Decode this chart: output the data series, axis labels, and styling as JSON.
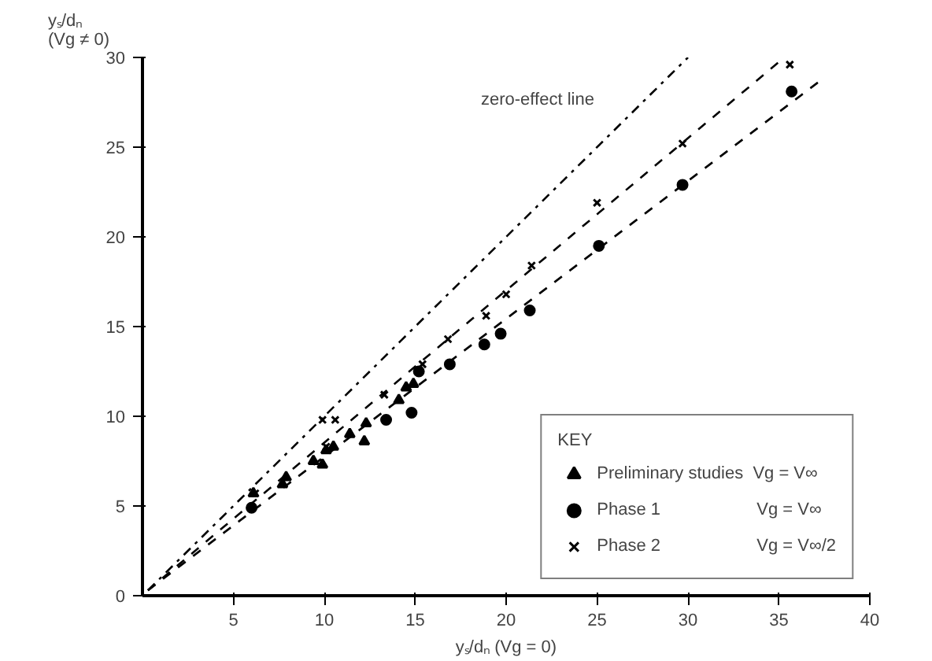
{
  "chart_data": {
    "type": "scatter",
    "xlabel": "yₛ/dₙ (Vg = 0)",
    "ylabel": "yₛ/dₙ\n(Vg ≠ 0)",
    "legend_title": "KEY",
    "xlim": [
      0,
      40
    ],
    "xticks": [
      5,
      10,
      15,
      20,
      25,
      30,
      35,
      40
    ],
    "ylim": [
      0,
      30
    ],
    "yticks": [
      0,
      5,
      10,
      15,
      20,
      25,
      30
    ],
    "grid": false,
    "legend": "bottom right",
    "annotations": [
      "zero-effect line"
    ],
    "series": [
      {
        "name": "Preliminary studies  Vg = V∞",
        "color": "#000000",
        "marker": "triangle",
        "x": [
          14.9,
          14.5,
          14.1,
          12.3,
          12.2,
          11.4,
          10.5,
          10.1,
          9.9,
          9.4,
          7.9,
          7.7,
          6.1
        ],
        "values": [
          11.8,
          11.6,
          10.9,
          9.6,
          8.6,
          9.0,
          8.3,
          8.1,
          7.3,
          7.5,
          6.6,
          6.2,
          5.7
        ]
      },
      {
        "name": "Phase 1                    Vg = V∞",
        "color": "#000000",
        "marker": "circle",
        "x": [
          35.7,
          29.7,
          25.1,
          21.3,
          19.7,
          18.8,
          16.9,
          15.2,
          14.8,
          13.4,
          6.0
        ],
        "values": [
          28.1,
          22.9,
          19.5,
          15.9,
          14.6,
          14.0,
          12.9,
          12.5,
          10.2,
          9.8,
          4.9
        ]
      },
      {
        "name": "Phase 2                    Vg = V∞/2",
        "color": "#000000",
        "marker": "x",
        "x": [
          35.6,
          29.7,
          25.0,
          21.4,
          20.0,
          18.9,
          16.8,
          15.4,
          13.3,
          10.6,
          9.9,
          10.1,
          6.2
        ],
        "values": [
          29.6,
          25.2,
          21.9,
          18.4,
          16.8,
          15.6,
          14.3,
          12.9,
          11.2,
          9.8,
          9.8,
          8.3,
          5.7
        ]
      },
      {
        "type": "line",
        "line_style": "dashdot",
        "color": "#000000",
        "x": [
          0.3,
          30.0
        ],
        "values": [
          0.3,
          30.0
        ]
      },
      {
        "type": "line",
        "line_style": "dashed",
        "color": "#000000",
        "x": [
          0.3,
          35.3
        ],
        "values": [
          0.3,
          30.0
        ]
      },
      {
        "type": "line",
        "line_style": "dashed",
        "color": "#000000",
        "x": [
          0.3,
          37.4
        ],
        "values": [
          0.3,
          28.8
        ]
      }
    ]
  }
}
